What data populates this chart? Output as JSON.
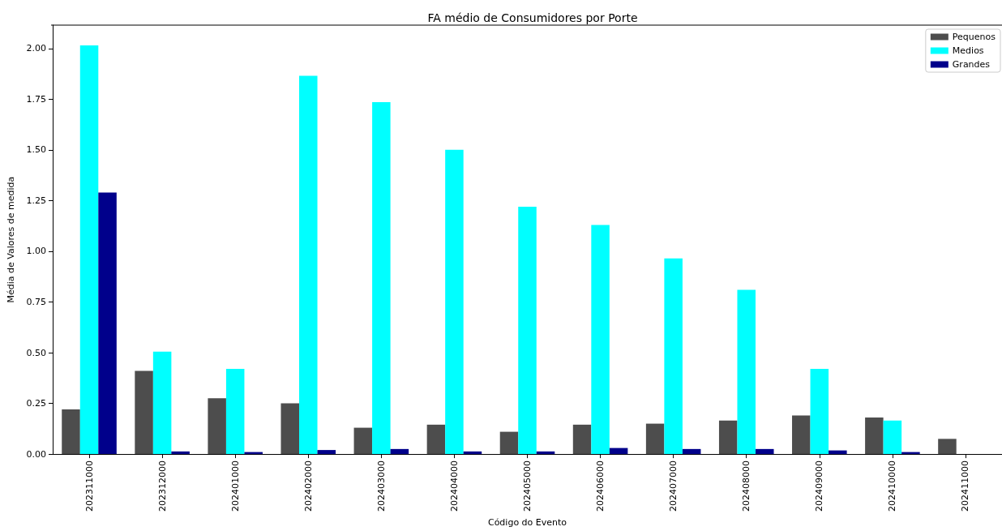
{
  "chart_data": {
    "type": "bar",
    "title": "FA médio de Consumidores por Porte",
    "xlabel": "Código do Evento",
    "ylabel": "Média de Valores de medida",
    "categories": [
      "202311000",
      "202312000",
      "202401000",
      "202402000",
      "202403000",
      "202404000",
      "202405000",
      "202406000",
      "202407000",
      "202408000",
      "202409000",
      "202410000",
      "202411000"
    ],
    "series": [
      {
        "name": "Pequenos",
        "color": "#4d4d4d",
        "values": [
          0.22,
          0.41,
          0.275,
          0.25,
          0.13,
          0.145,
          0.11,
          0.145,
          0.15,
          0.165,
          0.19,
          0.18,
          0.075
        ]
      },
      {
        "name": "Medios",
        "color": "#00ffff",
        "values": [
          2.015,
          0.505,
          0.42,
          1.865,
          1.735,
          1.5,
          1.22,
          1.13,
          0.965,
          0.81,
          0.42,
          0.165,
          null
        ]
      },
      {
        "name": "Grandes",
        "color": "#00008b",
        "values": [
          1.29,
          0.013,
          0.01,
          0.02,
          0.025,
          0.013,
          0.013,
          0.03,
          0.025,
          0.025,
          0.018,
          0.01,
          null
        ]
      }
    ],
    "ylim": [
      0,
      2.115
    ],
    "yticks": [
      {
        "value": 0,
        "label": "0.00"
      },
      {
        "value": 0.25,
        "label": "0.25"
      },
      {
        "value": 0.5,
        "label": "0.50"
      },
      {
        "value": 0.75,
        "label": "0.75"
      },
      {
        "value": 1,
        "label": "1.00"
      },
      {
        "value": 1.25,
        "label": "1.25"
      },
      {
        "value": 1.5,
        "label": "1.50"
      },
      {
        "value": 1.75,
        "label": "1.75"
      },
      {
        "value": 2,
        "label": "2.00"
      }
    ],
    "grid": false,
    "legend": "top right"
  }
}
